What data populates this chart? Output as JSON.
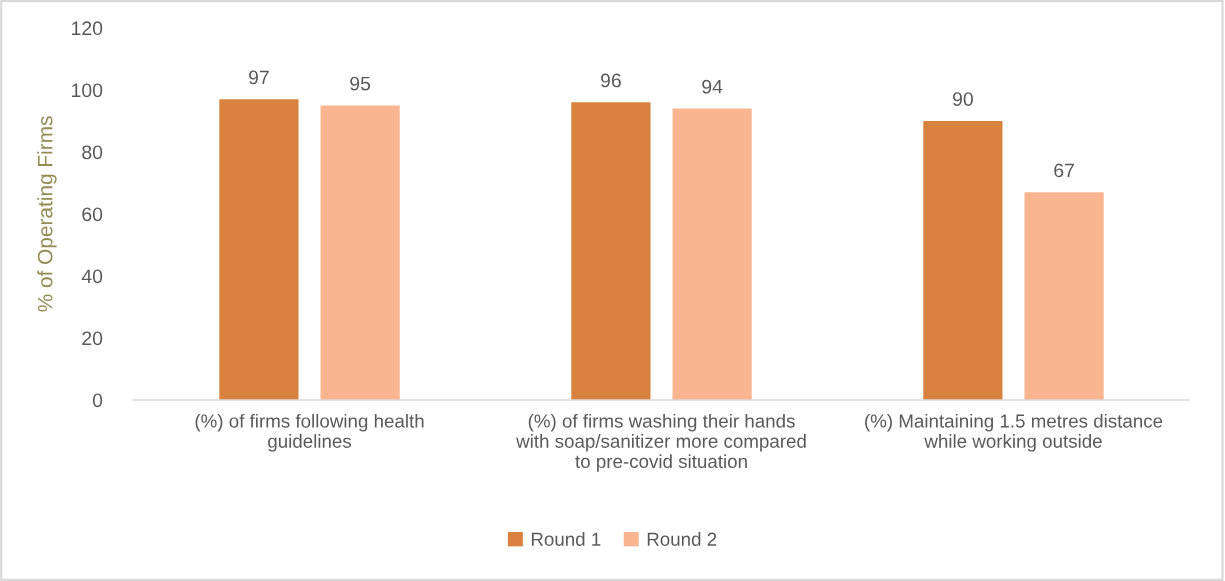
{
  "chart_data": {
    "type": "bar",
    "ylabel": "% of Operating Firms",
    "categories": [
      "(%) of firms following health\nguidelines",
      "(%) of firms washing their hands\nwith soap/sanitizer more compared\nto pre-covid situation",
      "(%) Maintaining 1.5 metres distance\nwhile working outside"
    ],
    "series": [
      {
        "name": "Round 1",
        "color": "#d9823f",
        "values": [
          97,
          96,
          90
        ]
      },
      {
        "name": "Round 2",
        "color": "#f8b58f",
        "values": [
          95,
          94,
          67
        ]
      }
    ],
    "ylim": [
      0,
      120
    ],
    "yticks": [
      0,
      20,
      40,
      60,
      80,
      100,
      120
    ],
    "data_labels": true,
    "grid": false,
    "legend": "bottom"
  }
}
